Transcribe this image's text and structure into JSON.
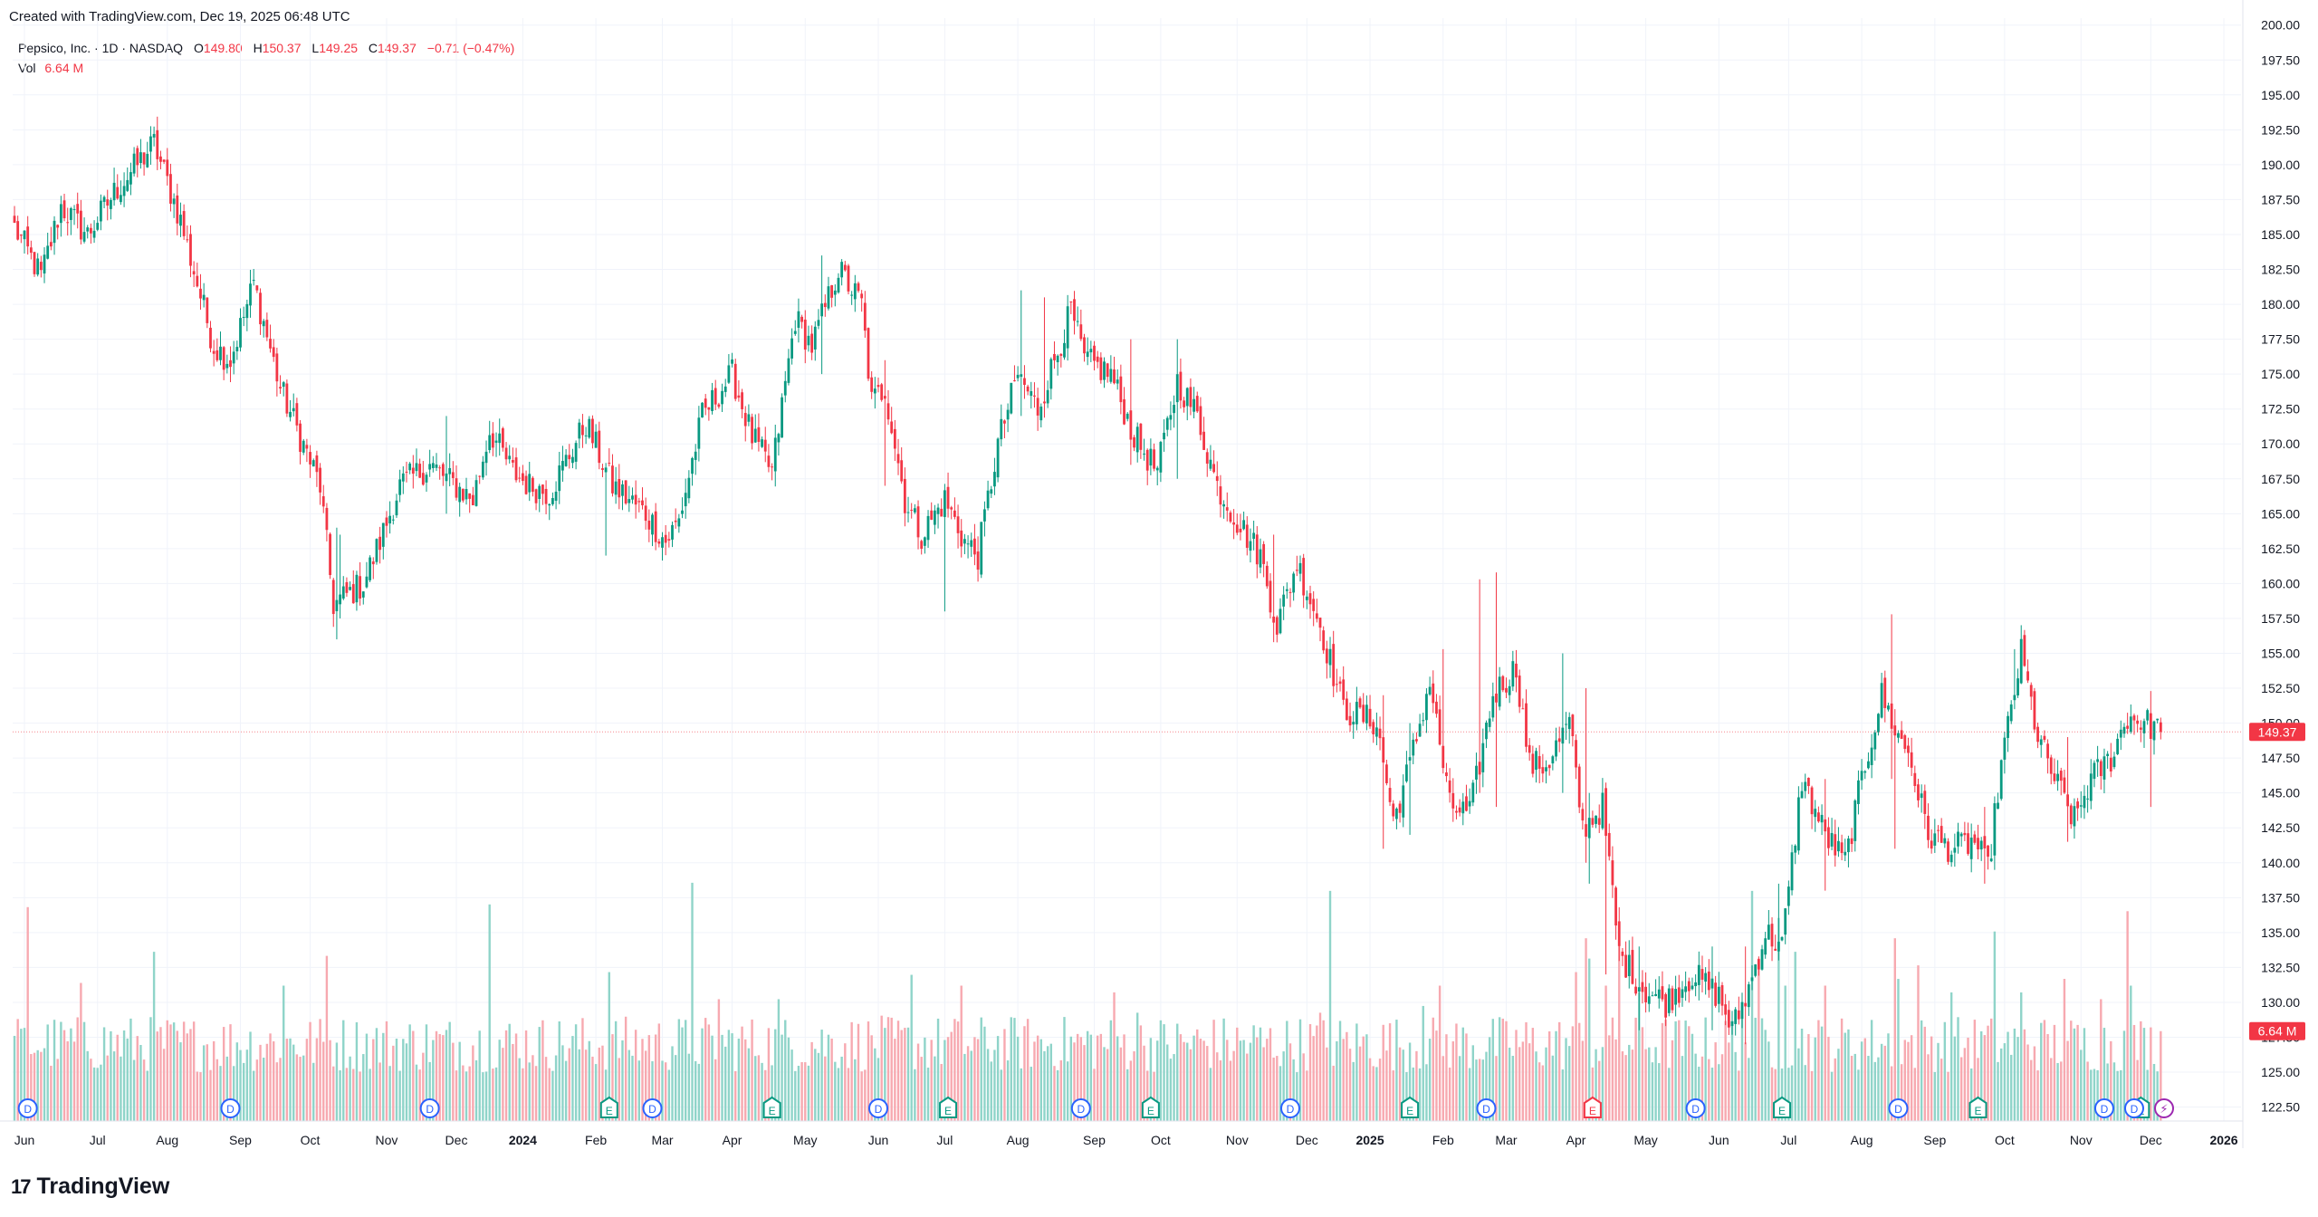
{
  "header": {
    "created_text": "Created with TradingView.com, Dec 19, 2025 06:48 UTC",
    "symbol": "Pepsico, Inc. · 1D · NASDAQ",
    "open_label": "O",
    "open": "149.80",
    "high_label": "H",
    "high": "150.37",
    "low_label": "L",
    "low": "149.25",
    "close_label": "C",
    "close": "149.37",
    "change": "−0.71 (−0.47%)",
    "vol_label": "Vol",
    "vol": "6.64 M"
  },
  "brand": {
    "logo_glyph": "17",
    "name": "TradingView"
  },
  "colors": {
    "up": "#089981",
    "down": "#f23645",
    "up_vol": "#8fd4c9",
    "down_vol": "#f7a9b0",
    "grid": "#f0f3fa",
    "dividend": "#2962ff",
    "earnings_up": "#089981",
    "earnings_down": "#f23645",
    "split": "#9c27b0"
  },
  "chart_data": {
    "type": "candlestick",
    "title": "Pepsico, Inc. · 1D · NASDAQ",
    "ylim": [
      121.5,
      200.5
    ],
    "y_ticks": [
      "200.00",
      "197.50",
      "195.00",
      "192.50",
      "190.00",
      "187.50",
      "185.00",
      "182.50",
      "180.00",
      "177.50",
      "175.00",
      "172.50",
      "170.00",
      "167.50",
      "165.00",
      "162.50",
      "160.00",
      "157.50",
      "155.00",
      "152.50",
      "150.00",
      "147.50",
      "145.00",
      "142.50",
      "140.00",
      "137.50",
      "135.00",
      "132.50",
      "130.00",
      "127.50",
      "125.00",
      "122.50"
    ],
    "x_ticks": [
      {
        "label": "Jun",
        "i": 3
      },
      {
        "label": "Jul",
        "i": 25
      },
      {
        "label": "Aug",
        "i": 46
      },
      {
        "label": "Sep",
        "i": 68
      },
      {
        "label": "Oct",
        "i": 89
      },
      {
        "label": "Nov",
        "i": 112
      },
      {
        "label": "Dec",
        "i": 133
      },
      {
        "label": "2024",
        "i": 153
      },
      {
        "label": "Feb",
        "i": 175
      },
      {
        "label": "Mar",
        "i": 195
      },
      {
        "label": "Apr",
        "i": 216
      },
      {
        "label": "May",
        "i": 238
      },
      {
        "label": "Jun",
        "i": 260
      },
      {
        "label": "Jul",
        "i": 280
      },
      {
        "label": "Aug",
        "i": 302
      },
      {
        "label": "Sep",
        "i": 325
      },
      {
        "label": "Oct",
        "i": 345
      },
      {
        "label": "Nov",
        "i": 368
      },
      {
        "label": "Dec",
        "i": 389
      },
      {
        "label": "2025",
        "i": 408
      },
      {
        "label": "Feb",
        "i": 430
      },
      {
        "label": "Mar",
        "i": 449
      },
      {
        "label": "Apr",
        "i": 470
      },
      {
        "label": "May",
        "i": 491
      },
      {
        "label": "Jun",
        "i": 513
      },
      {
        "label": "Jul",
        "i": 534
      },
      {
        "label": "Aug",
        "i": 556
      },
      {
        "label": "Sep",
        "i": 578
      },
      {
        "label": "Oct",
        "i": 599
      },
      {
        "label": "Nov",
        "i": 622
      },
      {
        "label": "Dec",
        "i": 643
      },
      {
        "label": "2026",
        "i": 665
      }
    ],
    "anchors": [
      [
        0,
        185.5
      ],
      [
        8,
        182
      ],
      [
        14,
        187
      ],
      [
        22,
        185
      ],
      [
        30,
        188
      ],
      [
        42,
        191.5
      ],
      [
        50,
        186
      ],
      [
        60,
        177
      ],
      [
        65,
        176
      ],
      [
        72,
        181.5
      ],
      [
        80,
        174
      ],
      [
        92,
        167
      ],
      [
        96,
        158.5
      ],
      [
        105,
        160
      ],
      [
        110,
        163
      ],
      [
        116,
        167
      ],
      [
        125,
        168.5
      ],
      [
        138,
        166
      ],
      [
        143,
        171
      ],
      [
        150,
        168
      ],
      [
        155,
        167
      ],
      [
        161,
        166.5
      ],
      [
        172,
        171.5
      ],
      [
        180,
        167
      ],
      [
        190,
        165
      ],
      [
        196,
        163
      ],
      [
        200,
        164.5
      ],
      [
        207,
        172
      ],
      [
        216,
        175
      ],
      [
        222,
        170.5
      ],
      [
        228,
        168
      ],
      [
        235,
        179
      ],
      [
        240,
        177
      ],
      [
        248,
        182.5
      ],
      [
        255,
        180
      ],
      [
        258,
        173
      ],
      [
        262,
        174
      ],
      [
        268,
        166
      ],
      [
        273,
        163.5
      ],
      [
        280,
        166
      ],
      [
        286,
        163
      ],
      [
        290,
        162
      ],
      [
        296,
        170
      ],
      [
        302,
        175
      ],
      [
        308,
        172.5
      ],
      [
        318,
        179.5
      ],
      [
        322,
        176
      ],
      [
        330,
        175
      ],
      [
        337,
        170.5
      ],
      [
        344,
        168
      ],
      [
        350,
        174.5
      ],
      [
        356,
        172
      ],
      [
        362,
        167
      ],
      [
        368,
        164.5
      ],
      [
        375,
        162
      ],
      [
        380,
        157
      ],
      [
        386,
        161.5
      ],
      [
        393,
        157
      ],
      [
        400,
        151
      ],
      [
        410,
        150
      ],
      [
        415,
        143
      ],
      [
        420,
        147
      ],
      [
        426,
        153
      ],
      [
        432,
        144
      ],
      [
        438,
        143.5
      ],
      [
        445,
        152
      ],
      [
        452,
        154
      ],
      [
        456,
        147
      ],
      [
        461,
        147
      ],
      [
        468,
        150
      ],
      [
        472,
        142.5
      ],
      [
        478,
        144
      ],
      [
        483,
        133.5
      ],
      [
        490,
        131
      ],
      [
        497,
        130
      ],
      [
        505,
        132
      ],
      [
        513,
        130.5
      ],
      [
        517,
        128
      ],
      [
        522,
        131
      ],
      [
        527,
        135
      ],
      [
        532,
        134
      ],
      [
        538,
        146
      ],
      [
        545,
        142
      ],
      [
        551,
        140
      ],
      [
        556,
        146
      ],
      [
        562,
        152
      ],
      [
        567,
        149
      ],
      [
        570,
        148
      ],
      [
        576,
        142
      ],
      [
        583,
        141
      ],
      [
        590,
        141.5
      ],
      [
        594,
        139.5
      ],
      [
        598,
        147
      ],
      [
        604,
        155
      ],
      [
        609,
        149
      ],
      [
        614,
        146
      ],
      [
        620,
        143
      ],
      [
        625,
        146
      ],
      [
        631,
        147.5
      ],
      [
        636,
        150.5
      ],
      [
        642,
        150
      ],
      [
        646,
        149.4
      ]
    ],
    "spikes": {
      "97": [
        156,
        164
      ],
      "98": [
        157.5,
        163.5
      ],
      "130": [
        165,
        172
      ],
      "178": [
        162,
        168.5
      ],
      "243": [
        175,
        183.5
      ],
      "262": [
        167,
        176
      ],
      "280": [
        158,
        165.5
      ],
      "303": [
        172,
        181
      ],
      "310": [
        174,
        180.5
      ],
      "336": [
        168.5,
        177.5
      ],
      "350": [
        167.5,
        177.5
      ],
      "379": [
        155.8,
        163.5
      ],
      "412": [
        141,
        152
      ],
      "420": [
        142,
        150
      ],
      "430": [
        150,
        155.3
      ],
      "441": [
        145,
        160.3
      ],
      "446": [
        144,
        160.8
      ],
      "466": [
        145,
        155
      ],
      "473": [
        140,
        152.5
      ],
      "474": [
        138.5,
        145
      ],
      "479": [
        132,
        143
      ],
      "489": [
        128,
        134
      ],
      "511": [
        128,
        134
      ],
      "521": [
        127,
        134
      ],
      "531": [
        133,
        138.5
      ],
      "545": [
        138,
        146
      ],
      "565": [
        146,
        157.8
      ],
      "566": [
        141,
        151
      ],
      "593": [
        138.5,
        144
      ],
      "602": [
        151,
        155.3
      ],
      "618": [
        141.5,
        149
      ],
      "643": [
        144,
        152.3
      ]
    },
    "volume_base": 3.6,
    "volume_spikes": {
      "4": 15.8,
      "20": 10.2,
      "42": 12.5,
      "81": 10.0,
      "94": 12.2,
      "143": 16.0,
      "179": 11.0,
      "204": 17.6,
      "212": 9.0,
      "230": 9.0,
      "270": 10.8,
      "285": 10.0,
      "331": 9.5,
      "338": 8.0,
      "393": 8.0,
      "396": 17.0,
      "424": 8.5,
      "429": 10.0,
      "470": 11.0,
      "473": 13.5,
      "474": 12.0,
      "479": 10.0,
      "483": 14.0,
      "489": 9.5,
      "520": 8.5,
      "523": 17.0,
      "525": 12.0,
      "531": 15.0,
      "533": 10.0,
      "536": 12.5,
      "545": 10.0,
      "566": 13.5,
      "567": 10.5,
      "573": 11.5,
      "583": 9.5,
      "596": 14.0,
      "604": 9.5,
      "617": 10.5,
      "628": 9.0,
      "636": 15.5,
      "637": 10.0,
      "646": 6.64
    },
    "volume_max_axis": 40,
    "last_price": "149.37",
    "last_volume": "6.64 M",
    "events": [
      {
        "type": "D",
        "i": 4
      },
      {
        "type": "D",
        "i": 65
      },
      {
        "type": "D",
        "i": 125
      },
      {
        "type": "E",
        "i": 179
      },
      {
        "type": "D",
        "i": 192
      },
      {
        "type": "E",
        "i": 228
      },
      {
        "type": "D",
        "i": 260
      },
      {
        "type": "E",
        "i": 281
      },
      {
        "type": "D",
        "i": 321
      },
      {
        "type": "E",
        "i": 342
      },
      {
        "type": "D",
        "i": 384
      },
      {
        "type": "E",
        "i": 420
      },
      {
        "type": "D",
        "i": 443
      },
      {
        "type": "E-down",
        "i": 475
      },
      {
        "type": "D",
        "i": 506
      },
      {
        "type": "E",
        "i": 532
      },
      {
        "type": "D",
        "i": 567
      },
      {
        "type": "E",
        "i": 591
      },
      {
        "type": "D",
        "i": 629
      },
      {
        "type": "E",
        "i": 640
      },
      {
        "type": "D",
        "i": 638
      },
      {
        "type": "S",
        "i": 647
      }
    ],
    "grid": true
  }
}
